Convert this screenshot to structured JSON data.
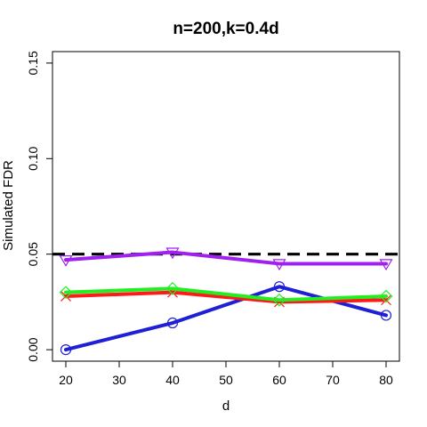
{
  "chart_data": {
    "type": "line",
    "title": "n=200,k=0.4d",
    "xlabel": "d",
    "ylabel": "Simulated FDR",
    "xlim": [
      17.5,
      82.5
    ],
    "ylim": [
      -0.006,
      0.156
    ],
    "xticks": [
      20,
      30,
      40,
      50,
      60,
      70,
      80
    ],
    "yticks": [
      0.0,
      0.05,
      0.1,
      0.15
    ],
    "ytick_labels": [
      "0.00",
      "0.05",
      "0.10",
      "0.15"
    ],
    "grid": false,
    "reference_line": {
      "y": 0.05,
      "style": "dashed",
      "color": "#000000"
    },
    "x": [
      20,
      40,
      60,
      80
    ],
    "series": [
      {
        "marker": "circle",
        "color": "#1f1fd6",
        "values": [
          0.0,
          0.014,
          0.033,
          0.018
        ]
      },
      {
        "marker": "x",
        "color": "#ff1a1a",
        "values": [
          0.028,
          0.03,
          0.025,
          0.026
        ]
      },
      {
        "marker": "diamond",
        "color": "#22ee22",
        "values": [
          0.03,
          0.032,
          0.026,
          0.028
        ]
      },
      {
        "marker": "triangle-down",
        "color": "#a020f0",
        "values": [
          0.047,
          0.051,
          0.045,
          0.045
        ]
      }
    ]
  }
}
